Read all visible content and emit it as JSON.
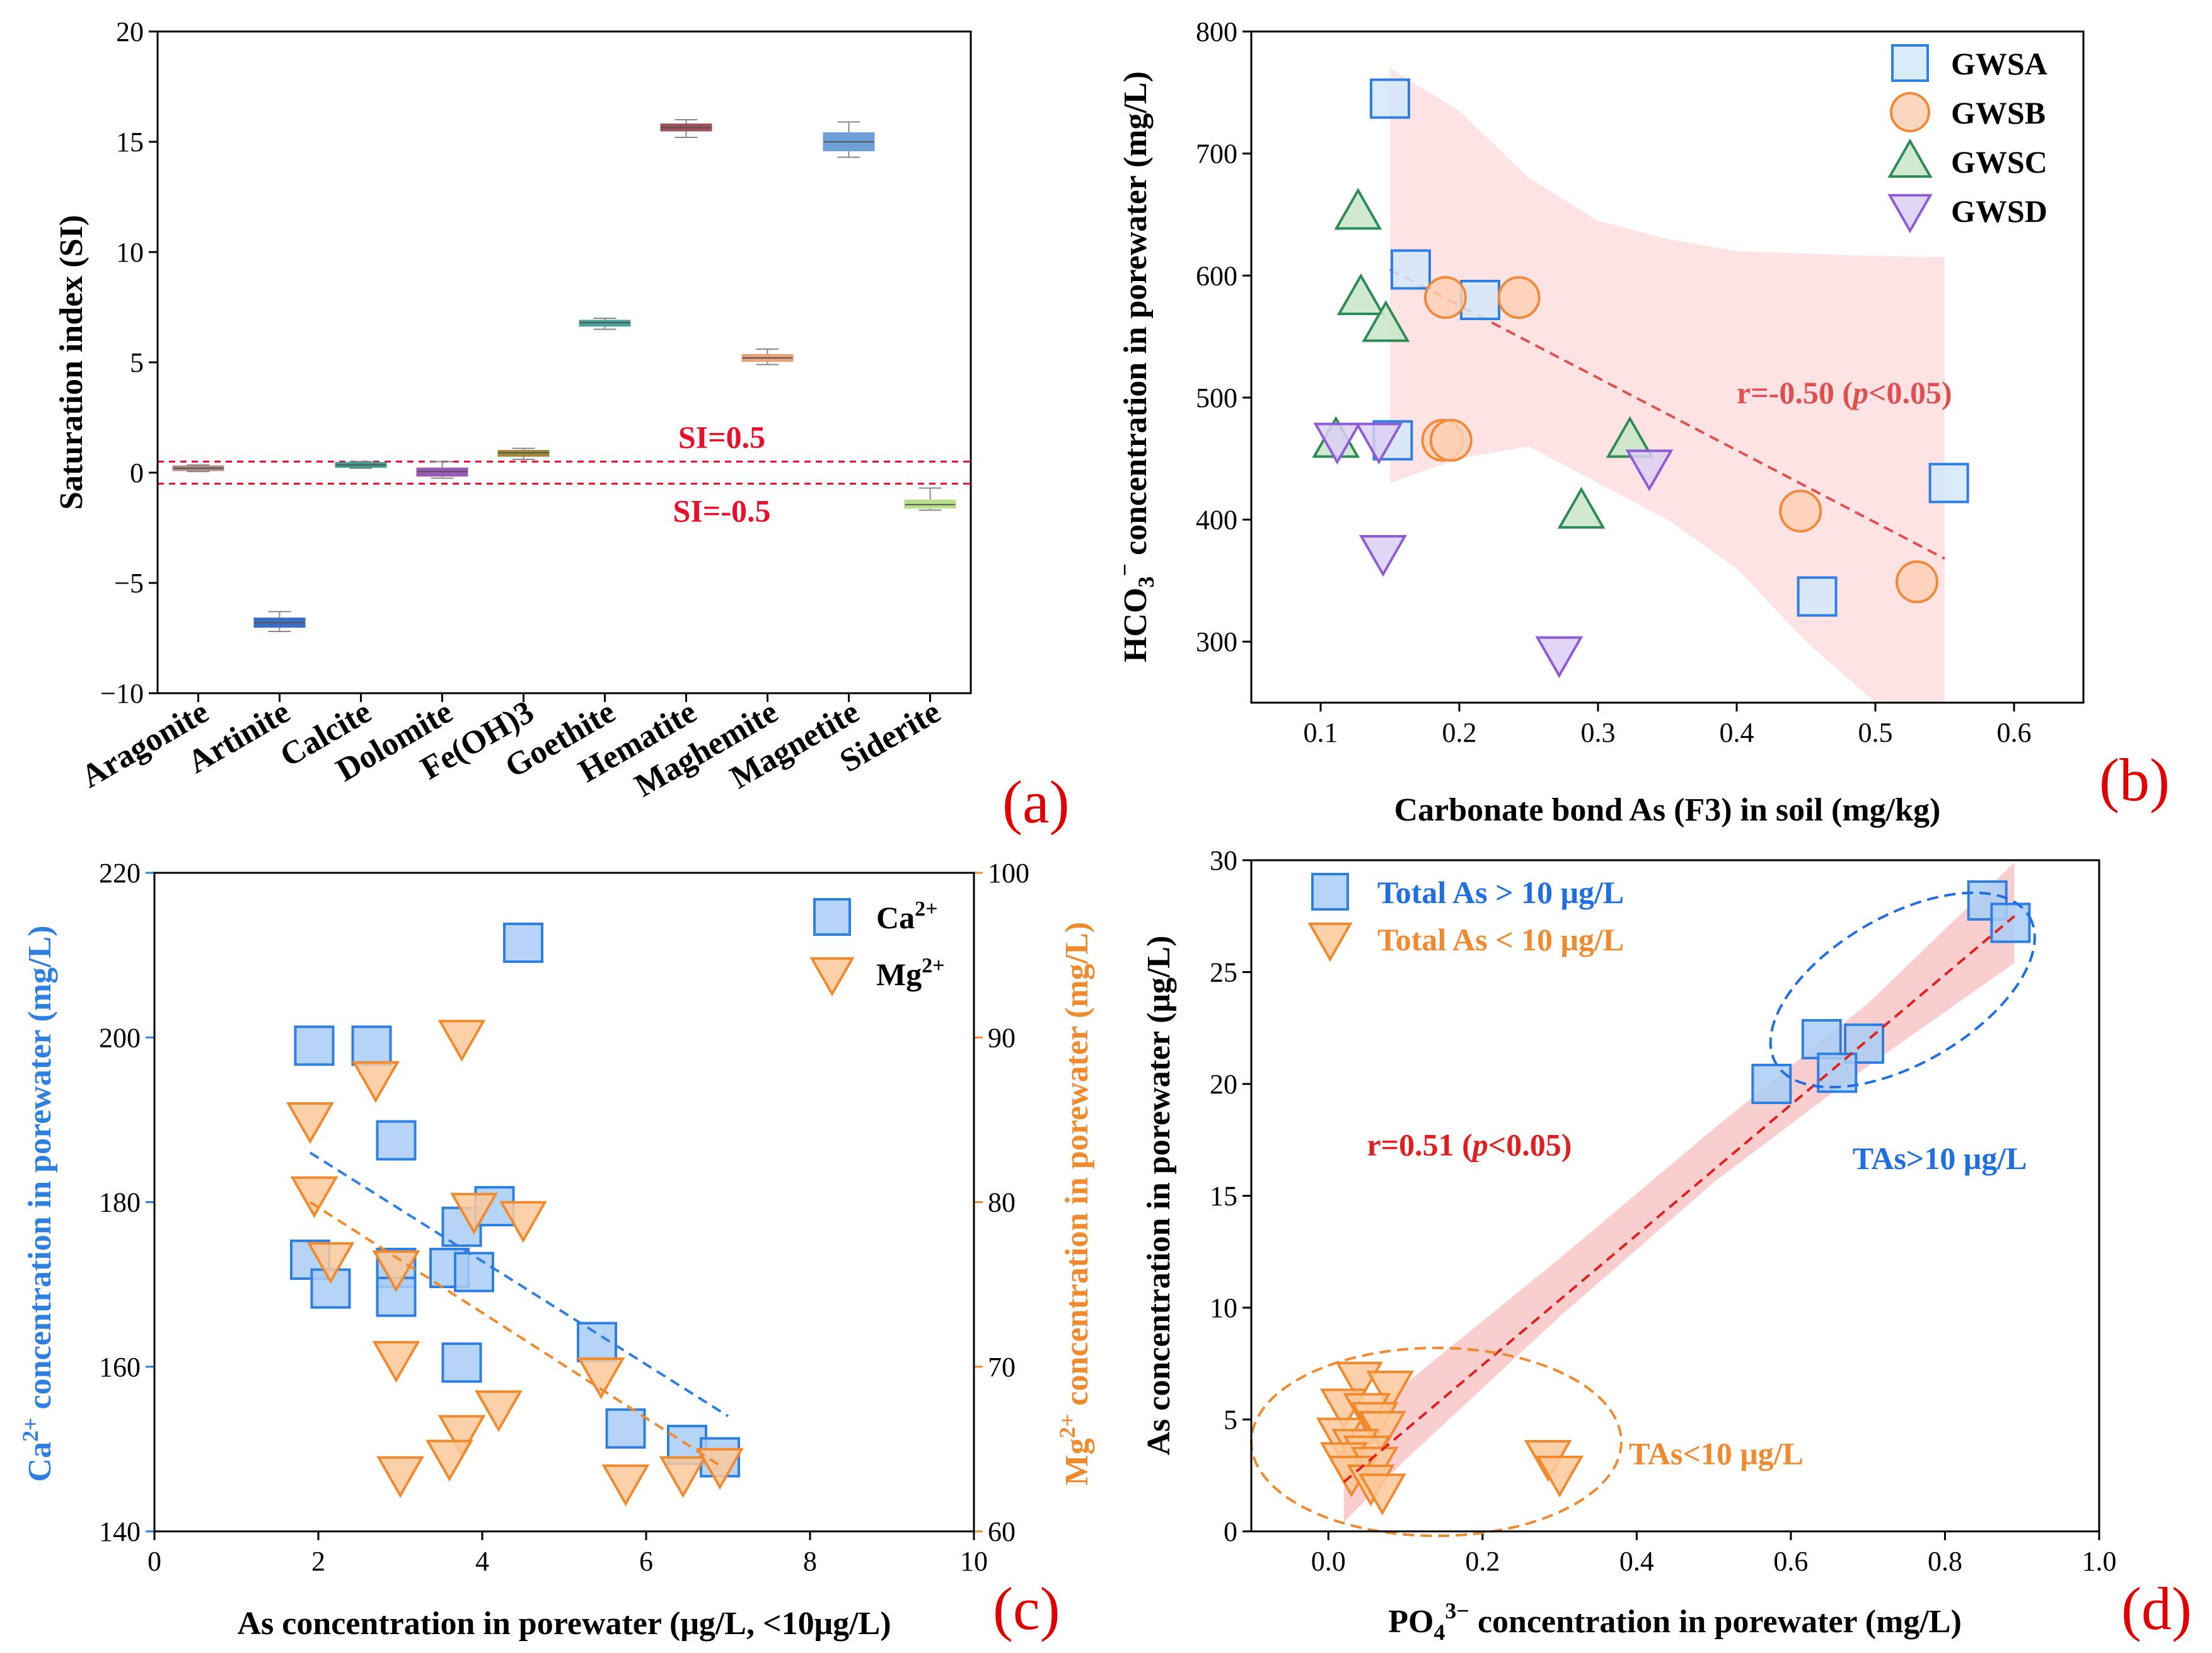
{
  "chart_data": [
    {
      "id": "a",
      "type": "box",
      "panel_label": "(a)",
      "ylabel": "Saturation index (SI)",
      "xlabel": "",
      "ylim": [
        -10,
        20
      ],
      "yticks": [
        -10,
        -5,
        0,
        5,
        10,
        15,
        20
      ],
      "ytick_labels": [
        "−10",
        "−5",
        "0",
        "5",
        "10",
        "15",
        "20"
      ],
      "categories": [
        "Aragonite",
        "Artinite",
        "Calcite",
        "Dolomite",
        "Fe(OH)3",
        "Goethite",
        "Hematite",
        "Maghemite",
        "Magnetite",
        "Siderite"
      ],
      "boxes": [
        {
          "q1": 0.1,
          "median": 0.2,
          "q3": 0.3,
          "min": 0.05,
          "max": 0.35,
          "color": "#b08b82"
        },
        {
          "q1": -7.0,
          "median": -6.8,
          "q3": -6.6,
          "min": -7.2,
          "max": -6.3,
          "color": "#3a6fc4"
        },
        {
          "q1": 0.25,
          "median": 0.35,
          "q3": 0.45,
          "min": 0.2,
          "max": 0.5,
          "color": "#3f9d8f"
        },
        {
          "q1": -0.15,
          "median": 0.05,
          "q3": 0.2,
          "min": -0.25,
          "max": 0.5,
          "color": "#9b59b6"
        },
        {
          "q1": 0.75,
          "median": 0.9,
          "q3": 1.0,
          "min": 0.6,
          "max": 1.1,
          "color": "#a08a3a"
        },
        {
          "q1": 6.65,
          "median": 6.8,
          "q3": 6.9,
          "min": 6.5,
          "max": 7.0,
          "color": "#4aa39a"
        },
        {
          "q1": 15.5,
          "median": 15.65,
          "q3": 15.8,
          "min": 15.2,
          "max": 16.0,
          "color": "#a0525a"
        },
        {
          "q1": 5.05,
          "median": 5.2,
          "q3": 5.35,
          "min": 4.9,
          "max": 5.6,
          "color": "#e8a07a"
        },
        {
          "q1": 14.6,
          "median": 15.0,
          "q3": 15.4,
          "min": 14.3,
          "max": 15.9,
          "color": "#6e9fd6"
        },
        {
          "q1": -1.6,
          "median": -1.45,
          "q3": -1.25,
          "min": -1.7,
          "max": -0.7,
          "color": "#b9e08a"
        }
      ],
      "ref_lines": [
        {
          "y": 0.5,
          "label": "SI=0.5",
          "color": "#e8102a"
        },
        {
          "y": -0.5,
          "label": "SI=-0.5",
          "color": "#e8102a"
        }
      ]
    },
    {
      "id": "b",
      "type": "scatter",
      "panel_label": "(b)",
      "xlabel": "Carbonate bond As (F3) in soil (mg/kg)",
      "ylabel_main": "HCO",
      "ylabel_sub": "3",
      "ylabel_sup": "−",
      "ylabel_rest": " concentration in porewater (mg/L)",
      "xlim": [
        0.05,
        0.65
      ],
      "ylim": [
        250,
        800
      ],
      "xticks": [
        0.1,
        0.2,
        0.3,
        0.4,
        0.5,
        0.6
      ],
      "xtick_labels": [
        "0.1",
        "0.2",
        "0.3",
        "0.4",
        "0.5",
        "0.6"
      ],
      "yticks": [
        300,
        400,
        500,
        600,
        700,
        800
      ],
      "ytick_labels": [
        "300",
        "400",
        "500",
        "600",
        "700",
        "800"
      ],
      "series": [
        {
          "name": "GWSA",
          "marker": "square",
          "fill": "#d3e7fb",
          "stroke": "#2e7fe0",
          "points": [
            [
              0.15,
              745
            ],
            [
              0.165,
              605
            ],
            [
              0.215,
              580
            ],
            [
              0.152,
              465
            ],
            [
              0.553,
              430
            ],
            [
              0.458,
              337
            ]
          ]
        },
        {
          "name": "GWSB",
          "marker": "circle",
          "fill": "#fcd0b5",
          "stroke": "#f0893a",
          "points": [
            [
              0.19,
              582
            ],
            [
              0.243,
              582
            ],
            [
              0.188,
              465
            ],
            [
              0.194,
              465
            ],
            [
              0.446,
              407
            ],
            [
              0.53,
              349
            ]
          ]
        },
        {
          "name": "GWSC",
          "marker": "triangle-up",
          "fill": "#c8e6c9",
          "stroke": "#2e8b57",
          "points": [
            [
              0.127,
              652
            ],
            [
              0.129,
              582
            ],
            [
              0.147,
              560
            ],
            [
              0.111,
              465
            ],
            [
              0.323,
              465
            ],
            [
              0.288,
              407
            ]
          ]
        },
        {
          "name": "GWSD",
          "marker": "triangle-down",
          "fill": "#dccff3",
          "stroke": "#8e5cd6",
          "points": [
            [
              0.112,
              465
            ],
            [
              0.142,
              465
            ],
            [
              0.145,
              373
            ],
            [
              0.337,
              443
            ],
            [
              0.272,
              290
            ]
          ]
        }
      ],
      "fit": {
        "x": [
          0.15,
          0.55
        ],
        "y": [
          605,
          368
        ],
        "color": "#e05050"
      },
      "ci_band": {
        "x": [
          0.15,
          0.2,
          0.25,
          0.3,
          0.35,
          0.4,
          0.45,
          0.5,
          0.55
        ],
        "upper": [
          770,
          735,
          680,
          645,
          630,
          620,
          618,
          616,
          615
        ],
        "lower": [
          430,
          450,
          460,
          430,
          400,
          360,
          300,
          250,
          250
        ],
        "color": "#fcdcdc"
      },
      "annotation": {
        "text": "r=-0.50 (",
        "italic": "p",
        "rest": "<0.05)",
        "color": "#e05050"
      }
    },
    {
      "id": "c",
      "type": "scatter",
      "panel_label": "(c)",
      "xlabel": "As concentration in porewater (μg/L, <10μg/L)",
      "ylabel_left_main": "Ca",
      "ylabel_left_sup": "2+",
      "ylabel_left_rest": " concentration in porewater (mg/L)",
      "ylabel_right_main": "Mg",
      "ylabel_right_sup": "2+",
      "ylabel_right_rest": " concentration in porewater (mg/L)",
      "left_color": "#2e7fe0",
      "right_color": "#f08a2e",
      "xlim": [
        0,
        10
      ],
      "xticks": [
        0,
        2,
        4,
        6,
        8,
        10
      ],
      "xtick_labels": [
        "0",
        "2",
        "4",
        "6",
        "8",
        "10"
      ],
      "ylim_left": [
        140,
        220
      ],
      "yticks_left": [
        140,
        160,
        180,
        200,
        220
      ],
      "ytick_labels_left": [
        "140",
        "160",
        "180",
        "200",
        "220"
      ],
      "ylim_right": [
        60,
        100
      ],
      "yticks_right": [
        60,
        70,
        80,
        90,
        100
      ],
      "ytick_labels_right": [
        "60",
        "70",
        "80",
        "90",
        "100"
      ],
      "series": [
        {
          "name": "Ca",
          "name_sup": "2+",
          "marker": "square",
          "fill": "#a9cdf5",
          "stroke": "#2e7fe0",
          "axis": "left",
          "points": [
            [
              1.95,
              199
            ],
            [
              2.65,
              199
            ],
            [
              2.95,
              187.5
            ],
            [
              4.5,
              211.5
            ],
            [
              1.9,
              173
            ],
            [
              2.15,
              169.5
            ],
            [
              2.95,
              172
            ],
            [
              2.95,
              168.5
            ],
            [
              3.6,
              172
            ],
            [
              3.9,
              171.5
            ],
            [
              3.75,
              177
            ],
            [
              4.15,
              179.5
            ],
            [
              3.75,
              160.5
            ],
            [
              5.4,
              163
            ],
            [
              5.75,
              152.5
            ],
            [
              6.5,
              150.5
            ],
            [
              6.9,
              149
            ]
          ]
        },
        {
          "name": "Mg",
          "name_sup": "2+",
          "marker": "triangle-down",
          "fill": "#fcc99a",
          "stroke": "#f08a2e",
          "axis": "right",
          "points": [
            [
              1.9,
              85
            ],
            [
              2.7,
              87.5
            ],
            [
              3.75,
              90
            ],
            [
              1.95,
              80.5
            ],
            [
              2.15,
              76.5
            ],
            [
              2.95,
              76
            ],
            [
              3.9,
              79.5
            ],
            [
              4.5,
              79
            ],
            [
              2.95,
              70.5
            ],
            [
              5.45,
              69.5
            ],
            [
              4.2,
              67.5
            ],
            [
              3.75,
              66
            ],
            [
              3.6,
              64.5
            ],
            [
              3.0,
              63.5
            ],
            [
              5.75,
              63
            ],
            [
              6.45,
              63.5
            ],
            [
              6.9,
              64
            ]
          ]
        }
      ],
      "fit_left": {
        "x": [
          1.9,
          7.0
        ],
        "y": [
          186,
          154
        ],
        "color": "#2e7fe0"
      },
      "fit_right": {
        "x": [
          1.9,
          6.9
        ],
        "y": [
          80,
          64
        ],
        "color": "#f08a2e"
      }
    },
    {
      "id": "d",
      "type": "scatter",
      "panel_label": "(d)",
      "xlabel_main": "PO",
      "xlabel_sub": "4",
      "xlabel_sup": "3−",
      "xlabel_rest": " concentration in porewater (mg/L)",
      "ylabel": "As concentration in porewater (μg/L)",
      "xlim": [
        -0.1,
        1.0
      ],
      "ylim": [
        0,
        30
      ],
      "xticks": [
        0.0,
        0.2,
        0.4,
        0.6,
        0.8,
        1.0
      ],
      "xtick_labels": [
        "0.0",
        "0.2",
        "0.4",
        "0.6",
        "0.8",
        "1.0"
      ],
      "yticks": [
        0,
        5,
        10,
        15,
        20,
        25,
        30
      ],
      "ytick_labels": [
        "0",
        "5",
        "10",
        "15",
        "20",
        "25",
        "30"
      ],
      "series": [
        {
          "name": "Total As > 10 μg/L",
          "marker": "square",
          "fill": "#a9cdf5",
          "stroke": "#2e7fe0",
          "label_color": "#1f6fe0",
          "points": [
            [
              0.855,
              28.2
            ],
            [
              0.885,
              27.2
            ],
            [
              0.64,
              22.0
            ],
            [
              0.695,
              21.8
            ],
            [
              0.575,
              20.0
            ],
            [
              0.66,
              20.5
            ]
          ]
        },
        {
          "name": "Total As < 10 μg/L",
          "marker": "triangle-down",
          "fill": "#fcc99a",
          "stroke": "#f08a2e",
          "label_color": "#f08a2e",
          "points": [
            [
              0.04,
              6.8
            ],
            [
              0.08,
              6.4
            ],
            [
              0.02,
              5.6
            ],
            [
              0.05,
              5.4
            ],
            [
              0.06,
              5.0
            ],
            [
              0.07,
              4.6
            ],
            [
              0.015,
              4.3
            ],
            [
              0.035,
              3.8
            ],
            [
              0.05,
              3.5
            ],
            [
              0.02,
              3.2
            ],
            [
              0.06,
              3.0
            ],
            [
              0.03,
              2.6
            ],
            [
              0.055,
              2.2
            ],
            [
              0.07,
              1.8
            ],
            [
              0.285,
              3.3
            ],
            [
              0.3,
              2.6
            ]
          ]
        }
      ],
      "fit": {
        "x": [
          0.02,
          0.89
        ],
        "y": [
          2.2,
          27.5
        ],
        "color": "#e02020"
      },
      "ci_band": {
        "x": [
          0.02,
          0.1,
          0.3,
          0.5,
          0.7,
          0.89
        ],
        "upper": [
          4.2,
          6.6,
          12.2,
          18.0,
          23.6,
          29.9
        ],
        "lower": [
          0.4,
          3.2,
          9.6,
          15.6,
          20.8,
          25.4
        ],
        "color": "#f7c5c5"
      },
      "annotation": {
        "text": "r=0.51 (",
        "italic": "p",
        "rest": "<0.05)",
        "color": "#e02020"
      },
      "groups": [
        {
          "label": "TAs>10 μg/L",
          "color": "#1f6fe0",
          "cx": 0.745,
          "cy": 24.2,
          "rx": 0.19,
          "ry": 3.3,
          "rot": -30
        },
        {
          "label": "TAs<10 μg/L",
          "color": "#f08a2e",
          "cx": 0.14,
          "cy": 4.0,
          "rx": 0.24,
          "ry": 4.2,
          "rot": 0
        }
      ]
    }
  ]
}
